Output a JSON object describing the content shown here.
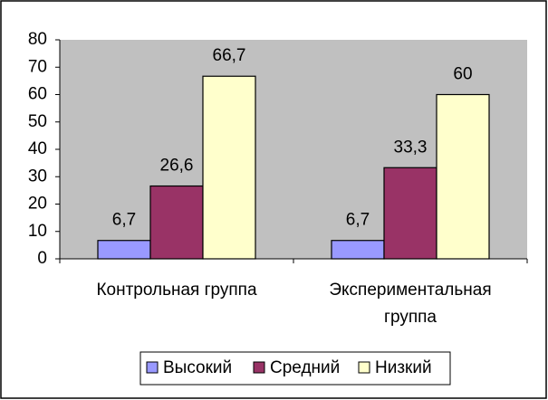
{
  "chart_data": {
    "type": "bar",
    "categories": [
      "Контрольная группа",
      "Экспериментальная группа"
    ],
    "series": [
      {
        "name": "Высокий",
        "color": "#9999ff",
        "values": [
          6.7,
          6.7
        ],
        "value_labels": [
          "6,7",
          "6,7"
        ]
      },
      {
        "name": "Средний",
        "color": "#993366",
        "values": [
          26.6,
          33.3
        ],
        "value_labels": [
          "26,6",
          "33,3"
        ]
      },
      {
        "name": "Низкий",
        "color": "#ffffcc",
        "values": [
          66.7,
          60
        ],
        "value_labels": [
          "66,7",
          "60"
        ]
      }
    ],
    "ylim": [
      0,
      80
    ],
    "yticks": [
      0,
      10,
      20,
      30,
      40,
      50,
      60,
      70,
      80
    ],
    "plot_background": "#c0c0c0",
    "legend": "bottom"
  }
}
